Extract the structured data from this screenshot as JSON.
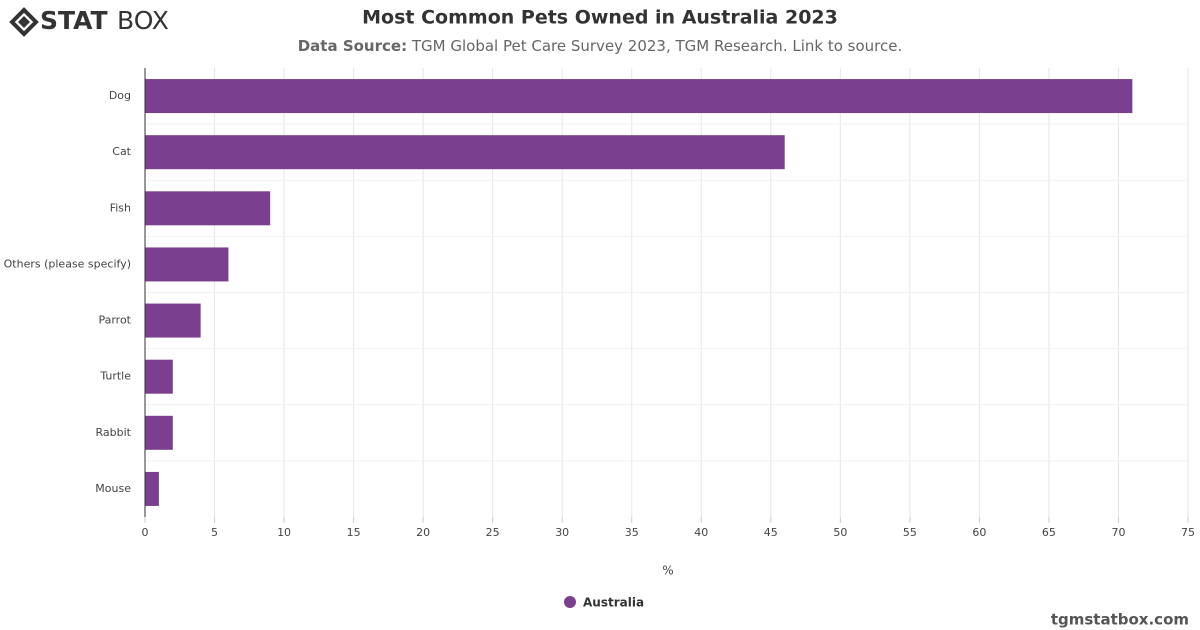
{
  "brand": {
    "bold": "STAT",
    "light": "BOX"
  },
  "footer": "tgmstatbox.com",
  "chart_data": {
    "type": "bar",
    "orientation": "horizontal",
    "title": "Most Common Pets Owned in Australia 2023",
    "subtitle_label": "Data Source:",
    "subtitle": "TGM Global Pet Care Survey 2023, TGM Research. Link to source.",
    "x_label": "%",
    "categories": [
      "Dog",
      "Cat",
      "Fish",
      "Others (please specify)",
      "Parrot",
      "Turtle",
      "Rabbit",
      "Mouse"
    ],
    "series": [
      {
        "name": "Australia",
        "color": "#7b3f8f",
        "values": [
          71,
          46,
          9,
          6,
          4,
          2,
          2,
          1
        ]
      }
    ],
    "xlim": [
      0,
      75
    ],
    "xticks": [
      0,
      5,
      10,
      15,
      20,
      25,
      30,
      35,
      40,
      45,
      50,
      55,
      60,
      65,
      70,
      75
    ],
    "grid": true
  }
}
